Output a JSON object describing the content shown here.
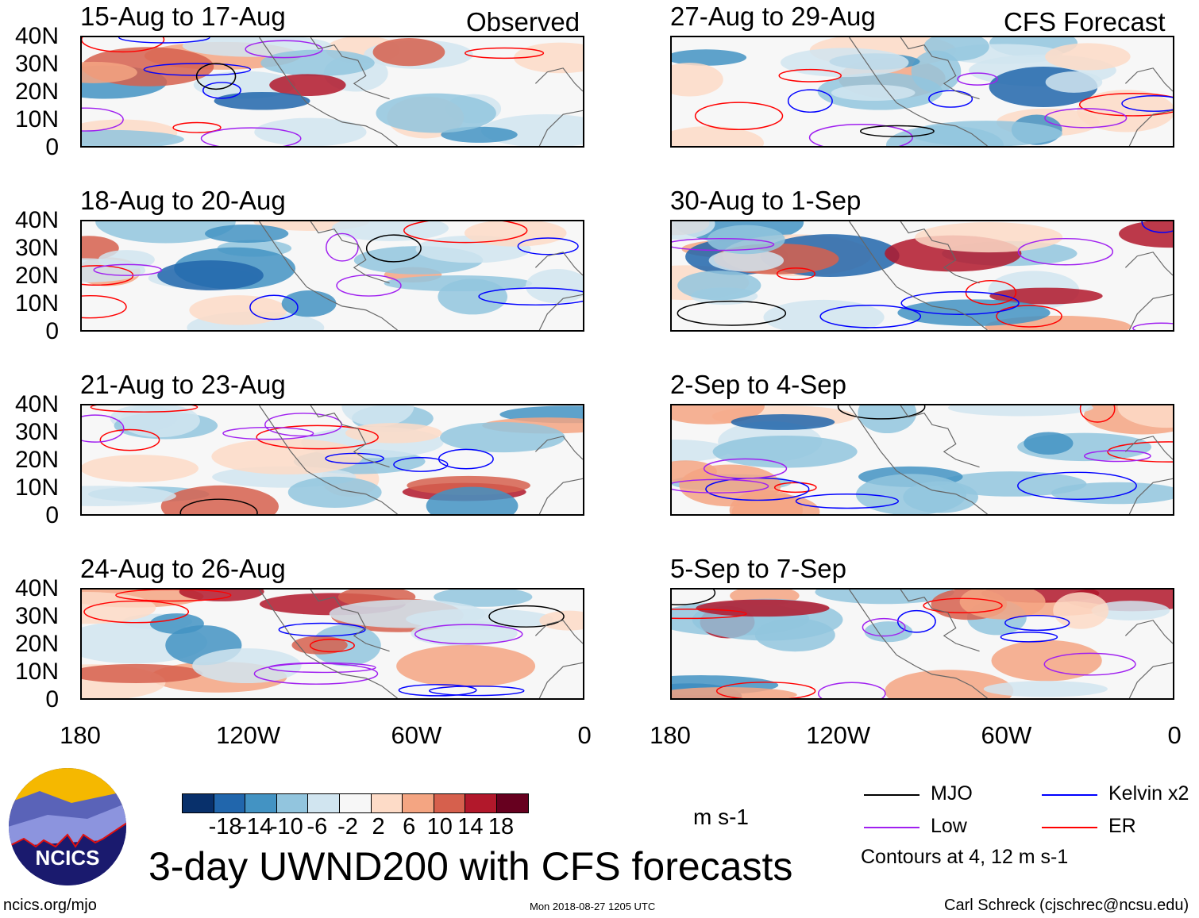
{
  "header": {
    "observed_label": "Observed",
    "forecast_label": "CFS Forecast"
  },
  "panels": [
    {
      "title": "15-Aug to 17-Aug",
      "type": "observed"
    },
    {
      "title": "27-Aug to 29-Aug",
      "type": "forecast"
    },
    {
      "title": "18-Aug to 20-Aug",
      "type": "observed"
    },
    {
      "title": "30-Aug to 1-Sep",
      "type": "forecast"
    },
    {
      "title": "21-Aug to 23-Aug",
      "type": "observed"
    },
    {
      "title": "2-Sep to 4-Sep",
      "type": "forecast"
    },
    {
      "title": "24-Aug to 26-Aug",
      "type": "observed"
    },
    {
      "title": "5-Sep to 7-Sep",
      "type": "forecast"
    }
  ],
  "y_ticks": [
    "40N",
    "30N",
    "20N",
    "10N",
    "0"
  ],
  "x_ticks": [
    "180",
    "120W",
    "60W",
    "0"
  ],
  "colorbar": {
    "colors": [
      "#08306b",
      "#2166ac",
      "#4393c3",
      "#92c5de",
      "#d1e5f0",
      "#f7f7f7",
      "#fddbc7",
      "#f4a582",
      "#d6604d",
      "#b2182b",
      "#67001f"
    ],
    "labels": [
      "-18",
      "-14",
      "-10",
      "-6",
      "-2",
      "2",
      "6",
      "10",
      "14",
      "18"
    ],
    "units": "m s-1"
  },
  "legend": {
    "items": [
      {
        "label": "MJO",
        "color": "#000000"
      },
      {
        "label": "Kelvin x2",
        "color": "#0000ff"
      },
      {
        "label": "Low",
        "color": "#a020f0"
      },
      {
        "label": "ER",
        "color": "#ff0000"
      }
    ],
    "contour_note": "Contours at 4, 12 m s-1"
  },
  "title": "3-day UWND200 with CFS forecasts",
  "footer": {
    "url": "ncics.org/mjo",
    "timestamp": "Mon 2018-08-27 1205 UTC",
    "credit": "Carl Schreck (cjschrec@ncsu.edu)"
  },
  "logo": {
    "text": "NCICS"
  }
}
